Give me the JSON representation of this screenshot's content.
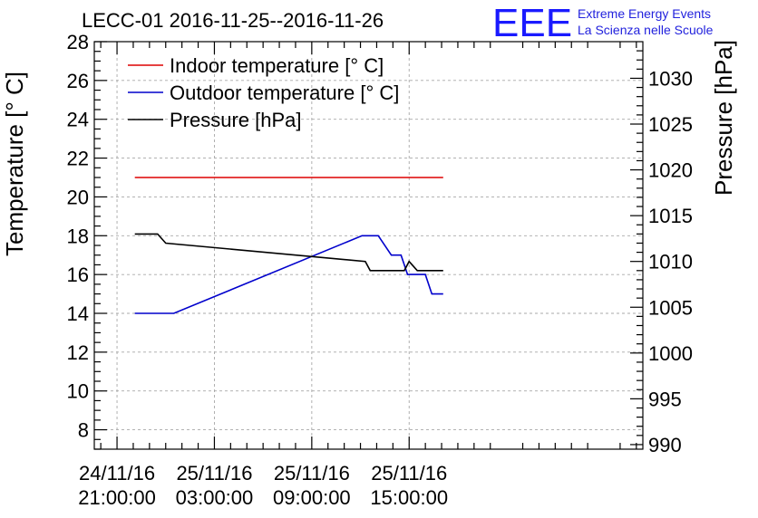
{
  "title": "LECC-01 2016-11-25--2016-11-26",
  "logo": {
    "mark": "EEE",
    "line1": "Extreme Energy Events",
    "line2": "La Scienza nelle Scuole"
  },
  "colors": {
    "indoor": "#dd0000",
    "outdoor": "#0000cc",
    "pressure": "#000000",
    "logo": "#1a1aff"
  },
  "chart_data": {
    "type": "line",
    "ylabel": "Temperature [° C]",
    "y2label": "Pressure [hPa]",
    "xlabel": "",
    "x_unit": "hours since 24/11/16 21:00:00",
    "xlim": [
      -1.4,
      32.4
    ],
    "ylim": [
      7,
      28
    ],
    "y2lim": [
      989.5,
      1034
    ],
    "grid": true,
    "legend_position": "top-left",
    "x_ticks": [
      {
        "value": 0,
        "line1": "24/11/16",
        "line2": "21:00:00"
      },
      {
        "value": 6,
        "line1": "25/11/16",
        "line2": "03:00:00"
      },
      {
        "value": 12,
        "line1": "25/11/16",
        "line2": "09:00:00"
      },
      {
        "value": 18,
        "line1": "25/11/16",
        "line2": "15:00:00"
      }
    ],
    "y_ticks": [
      8,
      10,
      12,
      14,
      16,
      18,
      20,
      22,
      24,
      26,
      28
    ],
    "y2_ticks": [
      990,
      995,
      1000,
      1005,
      1010,
      1015,
      1020,
      1025,
      1030
    ],
    "series": [
      {
        "name": "Indoor temperature [° C]",
        "axis": "left",
        "color_key": "indoor",
        "points": [
          [
            1.1,
            21.0
          ],
          [
            20.1,
            21.0
          ]
        ]
      },
      {
        "name": "Outdoor temperature [° C]",
        "axis": "left",
        "color_key": "outdoor",
        "points": [
          [
            1.1,
            14.0
          ],
          [
            3.5,
            14.0
          ],
          [
            15.1,
            18.0
          ],
          [
            16.1,
            18.0
          ],
          [
            16.9,
            17.0
          ],
          [
            17.5,
            17.0
          ],
          [
            17.9,
            16.0
          ],
          [
            19.0,
            16.0
          ],
          [
            19.4,
            15.0
          ],
          [
            20.1,
            15.0
          ]
        ]
      },
      {
        "name": "Pressure [hPa]",
        "axis": "right",
        "color_key": "pressure",
        "points": [
          [
            1.1,
            1013.0
          ],
          [
            2.5,
            1013.0
          ],
          [
            3.0,
            1012.0
          ],
          [
            15.3,
            1010.0
          ],
          [
            15.6,
            1009.0
          ],
          [
            17.7,
            1009.0
          ],
          [
            18.0,
            1010.0
          ],
          [
            18.5,
            1009.0
          ],
          [
            20.1,
            1009.0
          ]
        ]
      }
    ]
  }
}
